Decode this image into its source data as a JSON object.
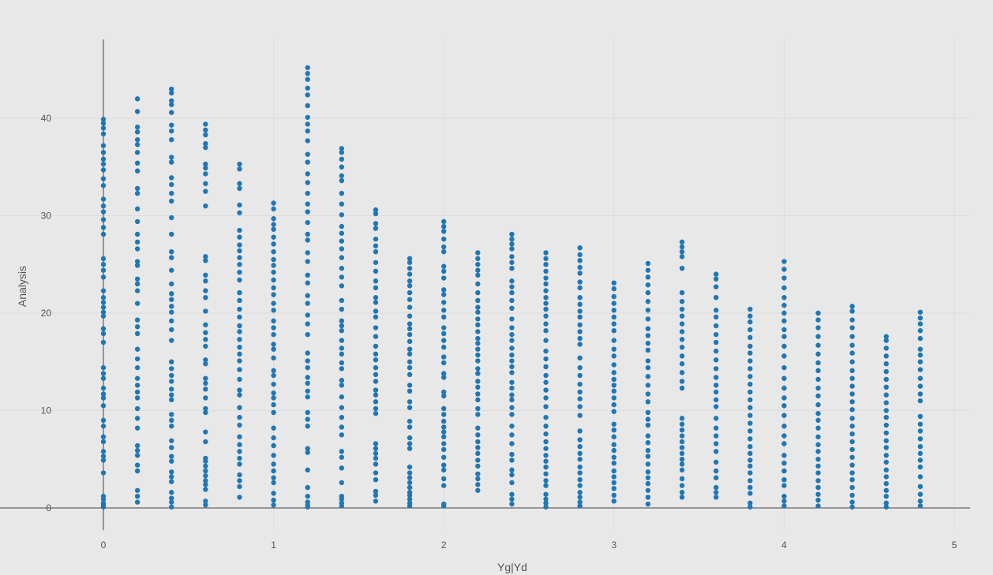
{
  "chart_data": {
    "type": "scatter",
    "xlabel": "Yg|Yd",
    "ylabel": "Analysis",
    "xlim": [
      -0.32,
      5.1
    ],
    "ylim": [
      -3.5,
      48
    ],
    "grid": true,
    "marker_color": "#1f77b4",
    "x_ticks": [
      0,
      1,
      2,
      3,
      4,
      5
    ],
    "y_ticks": [
      0,
      10,
      20,
      30,
      40
    ],
    "columns": [
      {
        "x": 0.0,
        "values": [
          0.1,
          0.3,
          0.5,
          0.9,
          1.2,
          3.6,
          4.9,
          5.3,
          5.8,
          6.8,
          7.3,
          8.4,
          9.0,
          10.5,
          11.3,
          11.7,
          12.3,
          13.3,
          13.8,
          14.4,
          17.0,
          17.9,
          18.4,
          19.7,
          20.1,
          20.6,
          21.1,
          21.6,
          22.3,
          23.7,
          24.4,
          25.0,
          25.6,
          28.1,
          28.8,
          29.6,
          30.4,
          31.0,
          31.7,
          33.1,
          33.8,
          34.7,
          35.3,
          35.8,
          36.5,
          37.2,
          38.4,
          39.0,
          39.5,
          39.9
        ]
      },
      {
        "x": 0.2,
        "values": [
          0.6,
          1.2,
          1.8,
          3.8,
          4.4,
          5.4,
          5.9,
          6.4,
          8.2,
          9.2,
          10.2,
          11.3,
          11.9,
          12.6,
          13.3,
          14.4,
          15.3,
          16.3,
          17.9,
          18.6,
          19.3,
          21.0,
          22.3,
          23.0,
          23.5,
          24.9,
          25.3,
          26.6,
          27.3,
          28.1,
          29.4,
          30.7,
          32.3,
          32.8,
          34.6,
          35.4,
          36.5,
          37.3,
          37.8,
          38.6,
          39.1,
          40.7,
          42.0
        ]
      },
      {
        "x": 0.4,
        "values": [
          0.1,
          0.6,
          1.0,
          1.6,
          2.7,
          3.2,
          3.7,
          4.8,
          5.3,
          6.2,
          6.9,
          8.4,
          9.0,
          9.6,
          11.1,
          11.6,
          12.2,
          13.0,
          13.6,
          14.3,
          15.0,
          17.2,
          18.3,
          19.2,
          20.1,
          20.7,
          21.4,
          22.0,
          23.0,
          24.4,
          25.7,
          26.3,
          28.1,
          29.8,
          31.5,
          32.3,
          33.2,
          33.9,
          35.5,
          36.0,
          37.8,
          38.7,
          39.3,
          40.6,
          41.4,
          41.8,
          42.6,
          43.0
        ]
      },
      {
        "x": 0.6,
        "values": [
          0.3,
          0.7,
          1.9,
          2.4,
          2.8,
          3.3,
          3.8,
          4.3,
          4.8,
          5.1,
          6.8,
          7.8,
          9.8,
          10.2,
          11.3,
          12.2,
          12.8,
          13.3,
          14.8,
          15.2,
          16.6,
          17.3,
          18.0,
          18.8,
          20.2,
          21.6,
          22.3,
          23.3,
          23.9,
          25.4,
          25.8,
          31.0,
          32.5,
          33.3,
          34.3,
          34.9,
          35.3,
          37.0,
          37.4,
          38.3,
          38.8,
          39.4
        ]
      },
      {
        "x": 0.8,
        "values": [
          1.1,
          2.2,
          2.8,
          3.4,
          4.5,
          5.1,
          5.8,
          6.5,
          7.3,
          8.5,
          9.3,
          10.3,
          11.6,
          12.1,
          13.2,
          14.2,
          15.1,
          15.8,
          16.5,
          17.3,
          18.1,
          18.7,
          19.6,
          20.4,
          21.3,
          22.1,
          23.4,
          24.2,
          25.0,
          25.7,
          26.4,
          27.0,
          27.8,
          28.5,
          30.3,
          31.1,
          32.8,
          33.3,
          34.8,
          35.3
        ]
      },
      {
        "x": 1.0,
        "values": [
          0.3,
          0.8,
          1.5,
          2.6,
          3.1,
          3.8,
          4.5,
          5.4,
          6.4,
          7.2,
          8.2,
          9.8,
          10.6,
          11.3,
          11.8,
          12.7,
          13.6,
          14.1,
          15.4,
          16.3,
          16.8,
          17.8,
          18.5,
          19.2,
          20.3,
          21.0,
          21.9,
          22.6,
          23.4,
          24.2,
          24.9,
          25.5,
          26.3,
          27.1,
          27.8,
          28.6,
          29.1,
          29.7,
          30.7,
          31.3
        ]
      },
      {
        "x": 1.2,
        "values": [
          0.1,
          0.3,
          0.6,
          1.2,
          2.1,
          3.9,
          5.7,
          6.1,
          8.4,
          9.1,
          9.8,
          11.4,
          12.0,
          12.8,
          13.4,
          14.4,
          15.1,
          15.9,
          17.8,
          18.9,
          19.8,
          21.0,
          21.8,
          23.1,
          23.9,
          25.3,
          26.2,
          27.5,
          28.1,
          29.3,
          30.4,
          31.2,
          32.3,
          33.4,
          34.3,
          35.5,
          36.3,
          37.7,
          38.7,
          39.4,
          40.1,
          41.3,
          42.4,
          43.1,
          44.0,
          44.6,
          45.2
        ]
      },
      {
        "x": 1.4,
        "values": [
          0.2,
          0.5,
          0.9,
          1.2,
          2.6,
          4.1,
          5.2,
          5.8,
          7.5,
          8.3,
          9.3,
          10.3,
          11.4,
          12.6,
          13.1,
          14.3,
          14.9,
          15.8,
          16.4,
          17.2,
          18.2,
          18.7,
          19.2,
          20.4,
          21.3,
          22.8,
          23.7,
          24.6,
          25.7,
          26.6,
          27.4,
          28.2,
          28.9,
          30.1,
          31.2,
          32.3,
          33.6,
          34.1,
          35.0,
          35.8,
          36.5,
          36.9
        ]
      },
      {
        "x": 1.6,
        "values": [
          0.7,
          1.3,
          1.7,
          2.9,
          3.6,
          4.5,
          5.1,
          5.6,
          6.1,
          6.6,
          9.7,
          10.2,
          10.9,
          11.6,
          12.1,
          13.0,
          13.7,
          14.4,
          15.2,
          15.8,
          16.6,
          17.6,
          18.5,
          19.6,
          20.2,
          21.1,
          21.6,
          22.6,
          23.3,
          24.3,
          25.2,
          26.3,
          26.9,
          27.6,
          28.7,
          29.2,
          30.2,
          30.6
        ]
      },
      {
        "x": 1.8,
        "values": [
          0.2,
          0.5,
          0.9,
          1.3,
          1.6,
          2.1,
          2.6,
          3.1,
          3.6,
          4.2,
          6.1,
          6.6,
          7.2,
          8.3,
          8.9,
          10.3,
          10.9,
          12.0,
          12.6,
          13.7,
          14.4,
          15.0,
          15.8,
          16.3,
          17.1,
          17.8,
          18.4,
          18.9,
          19.7,
          20.6,
          21.4,
          22.1,
          22.8,
          23.3,
          24.0,
          24.6,
          25.2,
          25.6
        ]
      },
      {
        "x": 2.0,
        "values": [
          0.2,
          0.4,
          2.3,
          3.0,
          3.9,
          4.4,
          5.2,
          6.0,
          6.6,
          7.3,
          7.8,
          8.3,
          8.9,
          9.6,
          10.2,
          11.5,
          11.9,
          13.4,
          13.8,
          14.9,
          15.5,
          16.5,
          17.2,
          17.9,
          18.5,
          19.6,
          20.3,
          21.1,
          21.9,
          22.4,
          23.6,
          24.3,
          24.8,
          26.3,
          26.8,
          27.6,
          28.4,
          28.9,
          29.4
        ]
      },
      {
        "x": 2.2,
        "values": [
          1.8,
          2.4,
          3.0,
          3.5,
          4.3,
          4.9,
          5.6,
          6.2,
          6.8,
          7.5,
          8.2,
          9.6,
          10.2,
          11.1,
          11.7,
          12.4,
          13.0,
          13.8,
          14.3,
          15.1,
          15.7,
          16.3,
          16.9,
          17.4,
          18.1,
          18.8,
          19.4,
          20.1,
          20.6,
          21.3,
          22.1,
          23.0,
          23.9,
          24.4,
          25.0,
          25.6,
          26.2
        ]
      },
      {
        "x": 2.4,
        "values": [
          0.4,
          0.9,
          1.4,
          2.6,
          3.4,
          3.9,
          4.9,
          5.5,
          6.6,
          7.5,
          8.4,
          9.6,
          10.3,
          11.1,
          11.6,
          12.3,
          12.9,
          13.9,
          14.5,
          15.1,
          15.7,
          16.4,
          17.2,
          17.8,
          18.5,
          19.4,
          20.5,
          21.3,
          22.1,
          22.7,
          23.3,
          24.6,
          25.2,
          25.8,
          26.6,
          27.1,
          27.6,
          28.1
        ]
      },
      {
        "x": 2.6,
        "values": [
          0.1,
          0.5,
          0.9,
          1.4,
          2.3,
          2.8,
          3.5,
          4.2,
          4.8,
          5.4,
          6.1,
          6.8,
          7.6,
          8.4,
          9.3,
          10.4,
          11.3,
          12.1,
          12.9,
          13.6,
          14.5,
          15.3,
          16.1,
          17.2,
          18.2,
          18.9,
          19.7,
          20.4,
          21.0,
          21.6,
          22.3,
          23.0,
          23.6,
          24.3,
          25.0,
          25.6,
          26.2
        ]
      },
      {
        "x": 2.8,
        "values": [
          0.2,
          0.6,
          1.1,
          1.6,
          2.3,
          2.9,
          3.6,
          4.2,
          5.0,
          5.6,
          6.3,
          7.0,
          7.9,
          9.5,
          10.4,
          11.2,
          11.9,
          12.7,
          13.6,
          14.4,
          15.4,
          16.8,
          17.4,
          18.1,
          18.8,
          19.6,
          20.2,
          20.9,
          21.6,
          22.6,
          23.2,
          24.1,
          24.7,
          25.4,
          26.0,
          26.7
        ]
      },
      {
        "x": 3.0,
        "values": [
          0.7,
          1.3,
          2.0,
          2.6,
          3.2,
          3.8,
          4.6,
          5.2,
          5.9,
          6.5,
          7.3,
          8.0,
          8.6,
          9.9,
          10.6,
          11.3,
          12.0,
          12.6,
          13.2,
          13.9,
          14.7,
          15.6,
          16.3,
          17.2,
          18.2,
          18.9,
          19.6,
          20.3,
          21.0,
          21.7,
          22.5,
          23.1
        ]
      },
      {
        "x": 3.2,
        "values": [
          0.4,
          1.1,
          1.8,
          2.5,
          3.1,
          3.7,
          4.5,
          5.3,
          5.9,
          6.7,
          7.4,
          8.5,
          9.1,
          9.8,
          10.9,
          11.7,
          12.6,
          13.5,
          14.4,
          15.1,
          16.2,
          16.9,
          17.7,
          18.4,
          19.4,
          20.3,
          21.2,
          22.1,
          22.9,
          23.7,
          24.4,
          25.1
        ]
      },
      {
        "x": 3.4,
        "values": [
          1.1,
          1.6,
          2.3,
          3.0,
          3.9,
          4.5,
          5.0,
          5.6,
          6.2,
          6.8,
          7.4,
          8.0,
          8.6,
          9.2,
          12.3,
          13.0,
          13.9,
          14.8,
          15.6,
          16.5,
          17.3,
          18.1,
          18.9,
          19.7,
          20.4,
          21.2,
          22.1,
          24.6,
          25.8,
          26.3,
          26.8,
          27.3
        ]
      },
      {
        "x": 3.6,
        "values": [
          1.1,
          1.6,
          2.1,
          3.1,
          3.8,
          4.7,
          5.8,
          6.6,
          7.4,
          8.2,
          9.2,
          10.4,
          11.1,
          11.9,
          12.6,
          13.4,
          14.3,
          15.2,
          16.1,
          17.0,
          17.8,
          18.7,
          19.6,
          20.3,
          21.6,
          22.7,
          23.5,
          24.0
        ]
      },
      {
        "x": 3.8,
        "values": [
          0.1,
          0.5,
          1.5,
          2.1,
          2.8,
          3.6,
          4.3,
          4.9,
          5.6,
          6.3,
          7.1,
          7.9,
          8.7,
          9.5,
          10.3,
          11.1,
          11.9,
          12.7,
          13.5,
          14.3,
          15.1,
          15.9,
          16.6,
          17.5,
          18.3,
          19.1,
          19.7,
          20.4
        ]
      },
      {
        "x": 4.0,
        "values": [
          0.2,
          0.7,
          1.2,
          2.3,
          2.9,
          3.8,
          4.6,
          5.4,
          6.6,
          7.4,
          8.4,
          9.5,
          10.5,
          11.3,
          12.3,
          13.3,
          14.4,
          15.6,
          16.6,
          17.6,
          18.3,
          19.2,
          20.0,
          20.8,
          21.6,
          22.6,
          23.6,
          24.5,
          25.3
        ]
      },
      {
        "x": 4.2,
        "values": [
          0.2,
          0.8,
          1.4,
          2.1,
          2.8,
          3.6,
          4.3,
          5.0,
          5.8,
          6.5,
          7.3,
          8.2,
          9.0,
          9.7,
          10.6,
          11.5,
          12.3,
          13.2,
          14.1,
          14.9,
          15.8,
          16.7,
          17.6,
          18.5,
          19.3,
          20.0
        ]
      },
      {
        "x": 4.4,
        "values": [
          0.1,
          0.6,
          1.3,
          2.1,
          2.9,
          3.6,
          4.4,
          5.2,
          6.0,
          6.8,
          7.6,
          8.4,
          9.2,
          10.1,
          10.9,
          11.7,
          12.5,
          13.3,
          14.1,
          15.0,
          15.9,
          16.7,
          17.6,
          18.5,
          19.3,
          20.2,
          20.7
        ]
      },
      {
        "x": 4.6,
        "values": [
          0.1,
          0.5,
          1.2,
          1.8,
          2.5,
          3.2,
          3.9,
          4.7,
          5.4,
          6.2,
          6.9,
          7.7,
          8.5,
          9.3,
          10.0,
          10.8,
          11.6,
          12.4,
          13.2,
          14.0,
          14.8,
          15.6,
          16.4,
          17.2,
          17.6
        ]
      },
      {
        "x": 4.8,
        "values": [
          0.2,
          0.7,
          1.4,
          2.2,
          3.2,
          4.2,
          4.9,
          5.6,
          6.3,
          7.1,
          7.9,
          8.6,
          9.4,
          11.0,
          11.7,
          12.5,
          13.3,
          14.2,
          15.0,
          15.7,
          16.3,
          17.4,
          18.2,
          18.9,
          19.5,
          20.1
        ]
      }
    ]
  }
}
